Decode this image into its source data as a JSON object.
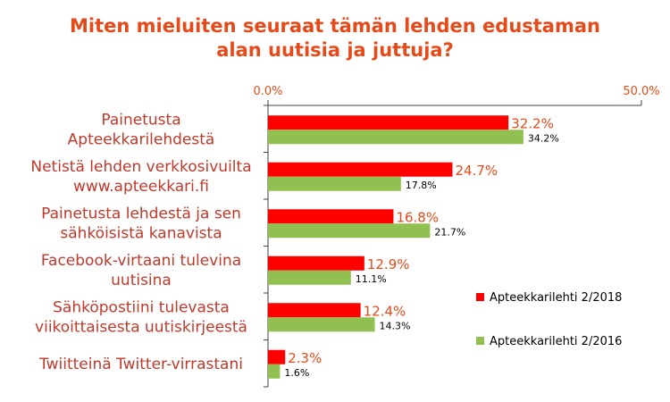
{
  "chart_data": {
    "type": "bar",
    "orientation": "horizontal",
    "title": [
      "Miten mieluiten seuraat tämän lehden edustaman",
      "alan uutisia ja juttuja?"
    ],
    "categories": [
      [
        "Painetusta",
        "Apteekkarilehdestä"
      ],
      [
        "Netistä lehden verkkosivuilta",
        "www.apteekkari.fi"
      ],
      [
        "Painetusta lehdestä ja sen",
        "sähköisistä kanavista"
      ],
      [
        "Facebook-virtaani tulevina",
        "uutisina"
      ],
      [
        "Sähköpostiini tulevasta",
        "viikoittaisesta uutiskirjeestä"
      ],
      [
        "Twiitteinä Twitter-virrastani"
      ]
    ],
    "series": [
      {
        "name": "Apteekkarilehti 2/2018",
        "color": "#ff0000",
        "values": [
          32.2,
          24.7,
          16.8,
          12.9,
          12.4,
          2.3
        ],
        "labels": [
          "32.2%",
          "24.7%",
          "16.8%",
          "12.9%",
          "12.4%",
          "2.3%"
        ]
      },
      {
        "name": "Apteekkarilehti 2/2016",
        "color": "#92c050",
        "values": [
          34.2,
          17.8,
          21.7,
          11.1,
          14.3,
          1.6
        ],
        "labels": [
          "34.2%",
          "17.8%",
          "21.7%",
          "11.1%",
          "14.3%",
          "1.6%"
        ]
      }
    ],
    "xlim": [
      0,
      50
    ],
    "ticks": [
      "0.0%",
      "50.0%"
    ],
    "legend_position": "right"
  }
}
